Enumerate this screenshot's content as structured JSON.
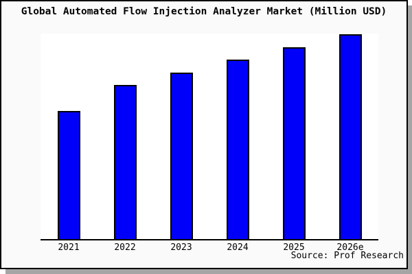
{
  "window": {
    "title": "Global Automated Flow Injection Analyzer Market (Million USD)"
  },
  "chart_data": {
    "type": "bar",
    "title": "Global Automated Flow Injection Analyzer Market (Million USD)",
    "categories": [
      "2021",
      "2022",
      "2023",
      "2024",
      "2025",
      "2026e"
    ],
    "values": [
      62.3,
      75.0,
      81.0,
      87.3,
      93.3,
      99.7
    ],
    "values_unit": "relative bar height, % of plot height (y-axis unlabeled in source chart)",
    "series_name": "Market size (Million USD)",
    "xlabel": "",
    "ylabel": "",
    "ylim": [
      0,
      100
    ],
    "grid": false,
    "legend_position": "none",
    "bar_color": "#0000fa",
    "bar_border_color": "#000000",
    "source_note": "Source: Prof Research"
  }
}
